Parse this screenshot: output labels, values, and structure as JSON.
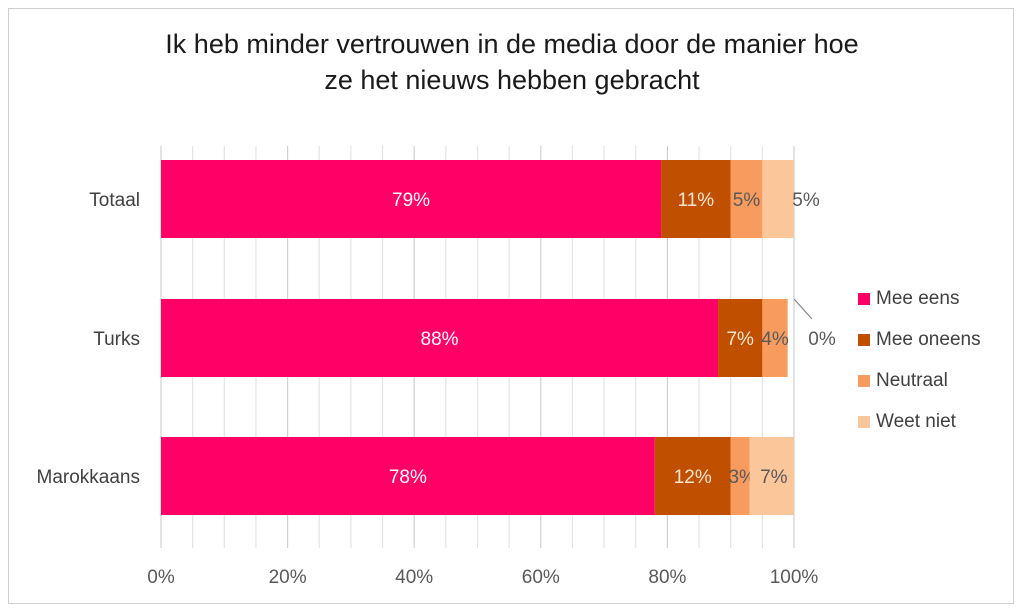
{
  "chart_data": {
    "type": "bar",
    "orientation": "horizontal",
    "stacked": true,
    "title_lines": [
      "Ik heb minder vertrouwen in de media door de manier hoe",
      "ze het nieuws hebben gebracht"
    ],
    "categories": [
      "Totaal",
      "Turks",
      "Marokkaans"
    ],
    "series": [
      {
        "name": "Mee eens",
        "color": "#ff0066",
        "values": [
          79,
          88,
          78
        ],
        "labels": [
          "79%",
          "88%",
          "78%"
        ]
      },
      {
        "name": "Mee oneens",
        "color": "#c05000",
        "values": [
          11,
          7,
          12
        ],
        "labels": [
          "11%",
          "7%",
          "12%"
        ]
      },
      {
        "name": "Neutraal",
        "color": "#f79b5e",
        "values": [
          5,
          4,
          3
        ],
        "labels": [
          "5%",
          "4%",
          "3%"
        ]
      },
      {
        "name": "Weet niet",
        "color": "#fbc79a",
        "values": [
          5,
          0,
          7
        ],
        "labels": [
          "5%",
          "0%",
          "7%"
        ]
      }
    ],
    "xlim": [
      0,
      100
    ],
    "x_ticks": [
      "0%",
      "20%",
      "40%",
      "60%",
      "80%",
      "100%"
    ],
    "x_tick_values": [
      0,
      20,
      40,
      60,
      80,
      100
    ],
    "grid": true,
    "legend_position": "right"
  }
}
